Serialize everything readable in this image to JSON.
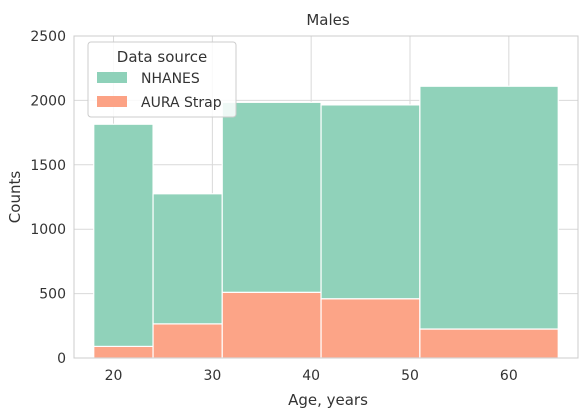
{
  "chart_data": {
    "type": "bar",
    "subtype": "stacked-histogram",
    "title": "Males",
    "xlabel": "Age, years",
    "ylabel": "Counts",
    "xlim": [
      16,
      67
    ],
    "ylim": [
      0,
      2500
    ],
    "xticks": [
      20,
      30,
      40,
      50,
      60
    ],
    "yticks": [
      0,
      500,
      1000,
      1500,
      2000,
      2500
    ],
    "grid": true,
    "legend": {
      "title": "Data source",
      "placement": "top-left"
    },
    "bins": [
      {
        "x0": 18,
        "x1": 24
      },
      {
        "x0": 24,
        "x1": 31
      },
      {
        "x0": 31,
        "x1": 41
      },
      {
        "x0": 41,
        "x1": 51
      },
      {
        "x0": 51,
        "x1": 65
      }
    ],
    "series": [
      {
        "name": "AURA Strap",
        "color": "#FCA285",
        "values": [
          90,
          265,
          510,
          460,
          225
        ]
      },
      {
        "name": "NHANES",
        "color": "#8ED1B9",
        "values": [
          1725,
          1010,
          1475,
          1505,
          1885
        ]
      }
    ]
  }
}
